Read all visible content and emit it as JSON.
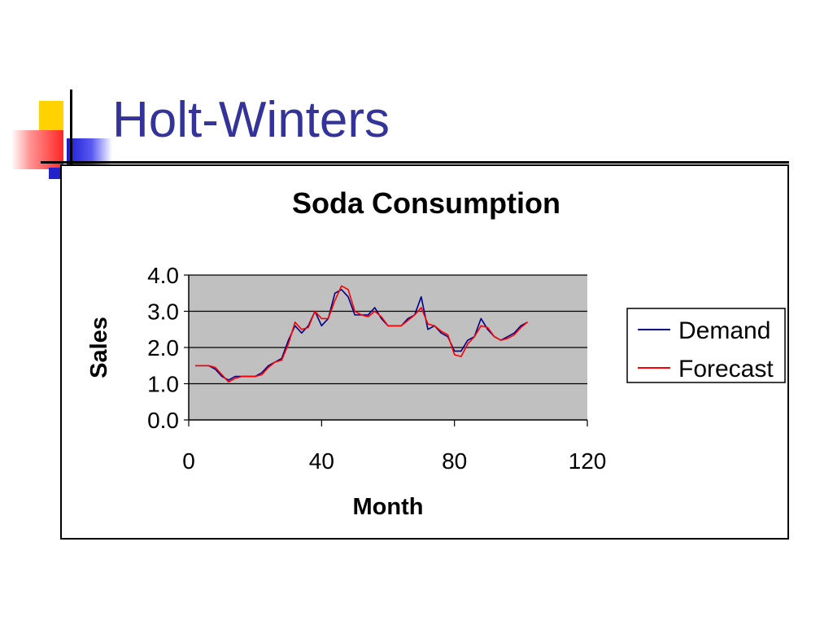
{
  "slide": {
    "title": "Holt-Winters"
  },
  "colors": {
    "title": "#333399",
    "plot_area": "#c0c0c0",
    "demand": "#00008b",
    "forecast": "#ff0000"
  },
  "chart_data": {
    "type": "line",
    "title": "Soda Consumption",
    "xlabel": "Month",
    "ylabel": "Sales",
    "xlim": [
      0,
      120
    ],
    "ylim": [
      0,
      4
    ],
    "xticks": [
      0,
      40,
      80,
      120
    ],
    "xtick_labels": [
      "0",
      "40",
      "80",
      "120"
    ],
    "yticks": [
      0,
      1,
      2,
      3,
      4
    ],
    "ytick_labels": [
      "0.0",
      "1.0",
      "2.0",
      "3.0",
      "4.0"
    ],
    "grid": "horizontal",
    "legend_position": "right",
    "series": [
      {
        "name": "Demand",
        "color": "#00008b",
        "x": [
          2,
          4,
          6,
          8,
          10,
          12,
          14,
          16,
          18,
          20,
          22,
          24,
          26,
          28,
          30,
          32,
          34,
          36,
          38,
          40,
          42,
          44,
          46,
          48,
          50,
          52,
          54,
          56,
          58,
          60,
          62,
          64,
          66,
          68,
          70,
          72,
          74,
          76,
          78,
          80,
          82,
          84,
          86,
          88,
          90,
          92,
          94,
          96,
          98,
          100,
          102
        ],
        "y": [
          1.5,
          1.5,
          1.5,
          1.4,
          1.2,
          1.1,
          1.2,
          1.2,
          1.2,
          1.2,
          1.3,
          1.5,
          1.6,
          1.7,
          2.2,
          2.6,
          2.4,
          2.6,
          3.0,
          2.6,
          2.8,
          3.5,
          3.6,
          3.4,
          2.9,
          2.9,
          2.9,
          3.1,
          2.8,
          2.6,
          2.6,
          2.6,
          2.8,
          2.9,
          3.4,
          2.5,
          2.6,
          2.4,
          2.3,
          1.9,
          1.9,
          2.2,
          2.3,
          2.8,
          2.5,
          2.3,
          2.2,
          2.3,
          2.4,
          2.6,
          2.7
        ]
      },
      {
        "name": "Forecast",
        "color": "#ff0000",
        "x": [
          2,
          4,
          6,
          8,
          10,
          12,
          14,
          16,
          18,
          20,
          22,
          24,
          26,
          28,
          30,
          32,
          34,
          36,
          38,
          40,
          42,
          44,
          46,
          48,
          50,
          52,
          54,
          56,
          58,
          60,
          62,
          64,
          66,
          68,
          70,
          72,
          74,
          76,
          78,
          80,
          82,
          84,
          86,
          88,
          90,
          92,
          94,
          96,
          98,
          100,
          102
        ],
        "y": [
          1.5,
          1.5,
          1.5,
          1.45,
          1.25,
          1.05,
          1.15,
          1.2,
          1.2,
          1.2,
          1.25,
          1.45,
          1.6,
          1.65,
          2.1,
          2.7,
          2.5,
          2.55,
          3.0,
          2.8,
          2.8,
          3.3,
          3.7,
          3.6,
          3.0,
          2.9,
          2.85,
          3.0,
          2.85,
          2.6,
          2.6,
          2.6,
          2.75,
          2.9,
          3.1,
          2.65,
          2.6,
          2.45,
          2.35,
          1.8,
          1.75,
          2.1,
          2.3,
          2.6,
          2.55,
          2.3,
          2.2,
          2.25,
          2.35,
          2.55,
          2.7
        ]
      }
    ]
  }
}
